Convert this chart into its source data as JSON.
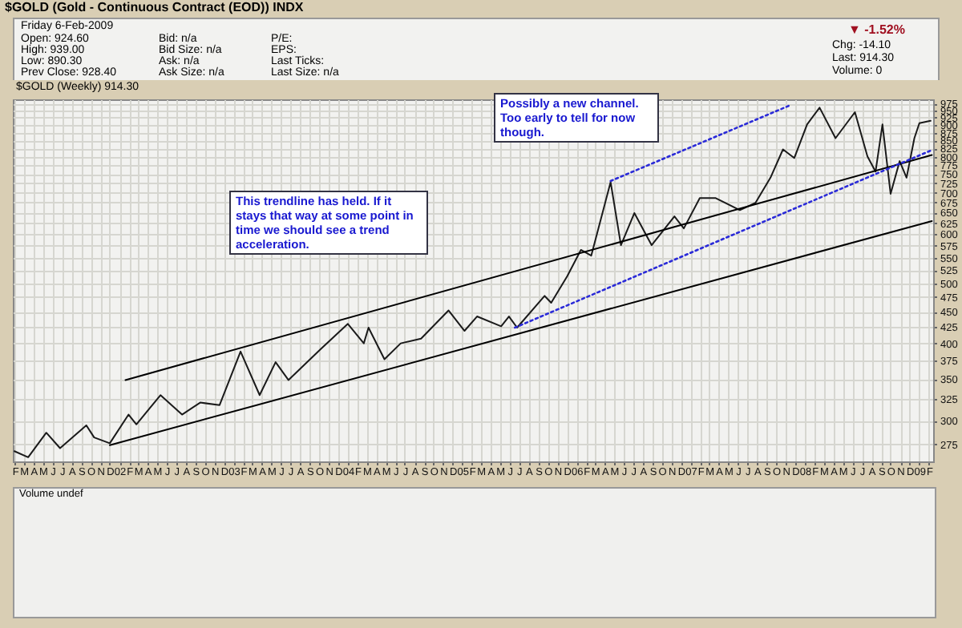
{
  "chart_data": {
    "type": "line",
    "title": "$GOLD (Gold - Continuous Contract (EOD)) INDX",
    "subtitle": "$GOLD (Weekly) 914.30",
    "annotations": [
      "Friday 6-Feb-2009",
      "Open: 924.60",
      "High: 939.00",
      "Low: 890.30",
      "Prev Close: 928.40",
      "Bid: n/a",
      "Bid Size: n/a",
      "Ask: n/a",
      "Ask Size: n/a",
      "P/E:",
      "EPS:",
      "Last Ticks:",
      "Last Size: n/a",
      "▼ -1.52%",
      "Chg: -14.10",
      "Last: 914.30",
      "Volume: 0",
      "Possibly a new channel. Too early to tell for now though.",
      "This trendline has held. If it stays that way at some point in time we should see a trend acceleration.",
      "Volume undef"
    ],
    "log": "y",
    "grid": true,
    "xlim": [
      "2001-01-25",
      "2009-02-14"
    ],
    "ylim": [
      258,
      990
    ],
    "yticks": [
      275,
      300,
      325,
      350,
      375,
      400,
      425,
      450,
      475,
      500,
      525,
      550,
      575,
      600,
      625,
      650,
      675,
      700,
      725,
      750,
      775,
      800,
      825,
      850,
      875,
      900,
      925,
      950,
      975
    ],
    "xticks": [
      {
        "value": "2001-02-01",
        "label": "F"
      },
      {
        "value": "2001-03-01",
        "label": "M"
      },
      {
        "value": "2001-04-01",
        "label": "A"
      },
      {
        "value": "2001-05-01",
        "label": "M"
      },
      {
        "value": "2001-06-01",
        "label": "J"
      },
      {
        "value": "2001-07-01",
        "label": "J"
      },
      {
        "value": "2001-08-01",
        "label": "A"
      },
      {
        "value": "2001-09-01",
        "label": "S"
      },
      {
        "value": "2001-10-01",
        "label": "O"
      },
      {
        "value": "2001-11-01",
        "label": "N"
      },
      {
        "value": "2001-12-01",
        "label": "D"
      },
      {
        "value": "2002-01-01",
        "label": "02"
      },
      {
        "value": "2002-02-01",
        "label": "F"
      },
      {
        "value": "2002-03-01",
        "label": "M"
      },
      {
        "value": "2002-04-01",
        "label": "A"
      },
      {
        "value": "2002-05-01",
        "label": "M"
      },
      {
        "value": "2002-06-01",
        "label": "J"
      },
      {
        "value": "2002-07-01",
        "label": "J"
      },
      {
        "value": "2002-08-01",
        "label": "A"
      },
      {
        "value": "2002-09-01",
        "label": "S"
      },
      {
        "value": "2002-10-01",
        "label": "O"
      },
      {
        "value": "2002-11-01",
        "label": "N"
      },
      {
        "value": "2002-12-01",
        "label": "D"
      },
      {
        "value": "2003-01-01",
        "label": "03"
      },
      {
        "value": "2003-02-01",
        "label": "F"
      },
      {
        "value": "2003-03-01",
        "label": "M"
      },
      {
        "value": "2003-04-01",
        "label": "A"
      },
      {
        "value": "2003-05-01",
        "label": "M"
      },
      {
        "value": "2003-06-01",
        "label": "J"
      },
      {
        "value": "2003-07-01",
        "label": "J"
      },
      {
        "value": "2003-08-01",
        "label": "A"
      },
      {
        "value": "2003-09-01",
        "label": "S"
      },
      {
        "value": "2003-10-01",
        "label": "O"
      },
      {
        "value": "2003-11-01",
        "label": "N"
      },
      {
        "value": "2003-12-01",
        "label": "D"
      },
      {
        "value": "2004-01-01",
        "label": "04"
      },
      {
        "value": "2004-02-01",
        "label": "F"
      },
      {
        "value": "2004-03-01",
        "label": "M"
      },
      {
        "value": "2004-04-01",
        "label": "A"
      },
      {
        "value": "2004-05-01",
        "label": "M"
      },
      {
        "value": "2004-06-01",
        "label": "J"
      },
      {
        "value": "2004-07-01",
        "label": "J"
      },
      {
        "value": "2004-08-01",
        "label": "A"
      },
      {
        "value": "2004-09-01",
        "label": "S"
      },
      {
        "value": "2004-10-01",
        "label": "O"
      },
      {
        "value": "2004-11-01",
        "label": "N"
      },
      {
        "value": "2004-12-01",
        "label": "D"
      },
      {
        "value": "2005-01-01",
        "label": "05"
      },
      {
        "value": "2005-02-01",
        "label": "F"
      },
      {
        "value": "2005-03-01",
        "label": "M"
      },
      {
        "value": "2005-04-01",
        "label": "A"
      },
      {
        "value": "2005-05-01",
        "label": "M"
      },
      {
        "value": "2005-06-01",
        "label": "J"
      },
      {
        "value": "2005-07-01",
        "label": "J"
      },
      {
        "value": "2005-08-01",
        "label": "A"
      },
      {
        "value": "2005-09-01",
        "label": "S"
      },
      {
        "value": "2005-10-01",
        "label": "O"
      },
      {
        "value": "2005-11-01",
        "label": "N"
      },
      {
        "value": "2005-12-01",
        "label": "D"
      },
      {
        "value": "2006-01-01",
        "label": "06"
      },
      {
        "value": "2006-02-01",
        "label": "F"
      },
      {
        "value": "2006-03-01",
        "label": "M"
      },
      {
        "value": "2006-04-01",
        "label": "A"
      },
      {
        "value": "2006-05-01",
        "label": "M"
      },
      {
        "value": "2006-06-01",
        "label": "J"
      },
      {
        "value": "2006-07-01",
        "label": "J"
      },
      {
        "value": "2006-08-01",
        "label": "A"
      },
      {
        "value": "2006-09-01",
        "label": "S"
      },
      {
        "value": "2006-10-01",
        "label": "O"
      },
      {
        "value": "2006-11-01",
        "label": "N"
      },
      {
        "value": "2006-12-01",
        "label": "D"
      },
      {
        "value": "2007-01-01",
        "label": "07"
      },
      {
        "value": "2007-02-01",
        "label": "F"
      },
      {
        "value": "2007-03-01",
        "label": "M"
      },
      {
        "value": "2007-04-01",
        "label": "A"
      },
      {
        "value": "2007-05-01",
        "label": "M"
      },
      {
        "value": "2007-06-01",
        "label": "J"
      },
      {
        "value": "2007-07-01",
        "label": "J"
      },
      {
        "value": "2007-08-01",
        "label": "A"
      },
      {
        "value": "2007-09-01",
        "label": "S"
      },
      {
        "value": "2007-10-01",
        "label": "O"
      },
      {
        "value": "2007-11-01",
        "label": "N"
      },
      {
        "value": "2007-12-01",
        "label": "D"
      },
      {
        "value": "2008-01-01",
        "label": "08"
      },
      {
        "value": "2008-02-01",
        "label": "F"
      },
      {
        "value": "2008-03-01",
        "label": "M"
      },
      {
        "value": "2008-04-01",
        "label": "A"
      },
      {
        "value": "2008-05-01",
        "label": "M"
      },
      {
        "value": "2008-06-01",
        "label": "J"
      },
      {
        "value": "2008-07-01",
        "label": "J"
      },
      {
        "value": "2008-08-01",
        "label": "A"
      },
      {
        "value": "2008-09-01",
        "label": "S"
      },
      {
        "value": "2008-10-01",
        "label": "O"
      },
      {
        "value": "2008-11-01",
        "label": "N"
      },
      {
        "value": "2008-12-01",
        "label": "D"
      },
      {
        "value": "2009-01-01",
        "label": "09"
      },
      {
        "value": "2009-02-01",
        "label": "F"
      }
    ],
    "series": [
      {
        "color": "#1a1a1a",
        "x": [
          "2001-01-30",
          "2001-03-15",
          "2001-05-12",
          "2001-06-25",
          "2001-09-17",
          "2001-10-12",
          "2001-12-01",
          "2002-01-30",
          "2002-02-24",
          "2002-05-12",
          "2002-07-20",
          "2002-09-16",
          "2002-11-17",
          "2003-01-23",
          "2003-03-25",
          "2003-05-15",
          "2003-06-25",
          "2003-10-05",
          "2004-01-01",
          "2004-02-21",
          "2004-03-07",
          "2004-04-27",
          "2004-06-18",
          "2004-08-22",
          "2004-11-18",
          "2005-01-08",
          "2005-02-17",
          "2005-05-05",
          "2005-05-30",
          "2005-06-25",
          "2005-09-21",
          "2005-10-12",
          "2005-12-02",
          "2006-01-15",
          "2006-02-17",
          "2006-04-20",
          "2006-05-23",
          "2006-07-05",
          "2006-08-29",
          "2006-11-10",
          "2006-12-10",
          "2007-01-30",
          "2007-03-22",
          "2007-06-07",
          "2007-07-27",
          "2007-09-13",
          "2007-10-23",
          "2007-11-28",
          "2008-01-08",
          "2008-02-17",
          "2008-04-08",
          "2008-06-09",
          "2008-07-19",
          "2008-08-14",
          "2008-09-05",
          "2008-10-01",
          "2008-10-30",
          "2008-11-21",
          "2008-12-16",
          "2009-01-01",
          "2009-02-06"
        ],
        "values": [
          268,
          262,
          287,
          271,
          295,
          282,
          276,
          307,
          296,
          330,
          307,
          321,
          318,
          388,
          330,
          373,
          349,
          391,
          430,
          400,
          424,
          377,
          400,
          407,
          452,
          419,
          442,
          426,
          442,
          424,
          477,
          465,
          513,
          566,
          554,
          728,
          576,
          649,
          576,
          641,
          613,
          686,
          686,
          656,
          674,
          740,
          822,
          796,
          902,
          960,
          857,
          944,
          801,
          757,
          902,
          697,
          787,
          740,
          857,
          906,
          914
        ]
      },
      {
        "color": "#000000",
        "x": [
          "2002-01-20",
          "2009-02-10"
        ],
        "values": [
          349,
          805
        ]
      },
      {
        "color": "#000000",
        "x": [
          "2001-12-01",
          "2009-02-10"
        ],
        "values": [
          274,
          630
        ]
      },
      {
        "color": "#2a2ad8",
        "line_style": "dotted",
        "x": [
          "2005-06-18",
          "2009-02-10"
        ],
        "values": [
          424,
          820
        ]
      },
      {
        "color": "#2a2ad8",
        "line_style": "dotted",
        "x": [
          "2006-04-20",
          "2007-11-18"
        ],
        "values": [
          731,
          970
        ]
      }
    ]
  }
}
